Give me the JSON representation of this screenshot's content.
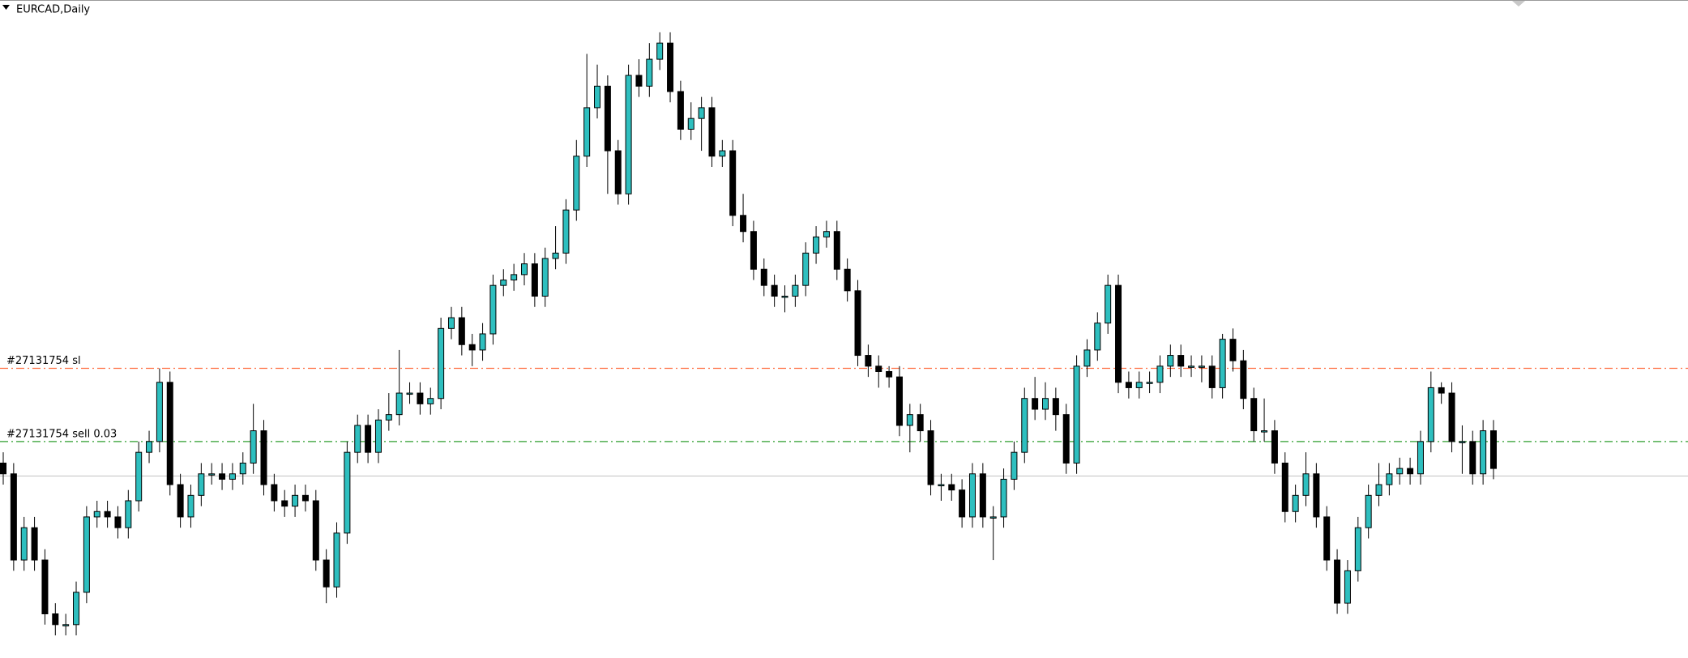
{
  "chart_data": {
    "type": "candlestick",
    "title": "EURCAD,Daily",
    "ylim": [
      -11,
      600
    ],
    "up_color": "#2ebfbf",
    "down_color": "#000000",
    "open": [
      170,
      160,
      80,
      110,
      80,
      30,
      20,
      20,
      50,
      120,
      125,
      120,
      110,
      135,
      180,
      190,
      245,
      150,
      120,
      140,
      160,
      160,
      155,
      160,
      170,
      200,
      150,
      135,
      130,
      140,
      135,
      80,
      55,
      105,
      180,
      205,
      180,
      210,
      215,
      235,
      235,
      225,
      230,
      295,
      305,
      280,
      275,
      290,
      335,
      340,
      345,
      355,
      325,
      360,
      365,
      405,
      455,
      500,
      520,
      460,
      420,
      530,
      520,
      545,
      560,
      515,
      480,
      490,
      500,
      455,
      460,
      400,
      385,
      350,
      335,
      325,
      325,
      335,
      365,
      380,
      385,
      350,
      330,
      270,
      260,
      255,
      250,
      205,
      215,
      200,
      150,
      150,
      145,
      120,
      160,
      120,
      120,
      155,
      180,
      230,
      220,
      230,
      215,
      170,
      260,
      275,
      300,
      335,
      245,
      240,
      245,
      245,
      260,
      270,
      260,
      260,
      260,
      240,
      285,
      265,
      230,
      200,
      200,
      170,
      125,
      140,
      160,
      120,
      80,
      40,
      70,
      110,
      140,
      150,
      160,
      165,
      160,
      190,
      240,
      235,
      190,
      190,
      160,
      200
    ],
    "high": [
      180,
      170,
      120,
      120,
      90,
      40,
      30,
      60,
      130,
      135,
      135,
      130,
      145,
      190,
      200,
      258,
      255,
      160,
      150,
      170,
      170,
      170,
      170,
      180,
      225,
      210,
      160,
      145,
      150,
      150,
      145,
      90,
      115,
      190,
      215,
      215,
      220,
      235,
      275,
      245,
      245,
      240,
      305,
      315,
      315,
      290,
      300,
      345,
      350,
      355,
      365,
      365,
      370,
      390,
      415,
      470,
      550,
      540,
      530,
      470,
      540,
      545,
      560,
      570,
      570,
      525,
      505,
      510,
      510,
      470,
      470,
      420,
      395,
      360,
      345,
      335,
      345,
      375,
      390,
      395,
      395,
      360,
      340,
      280,
      270,
      260,
      260,
      225,
      225,
      210,
      160,
      160,
      155,
      170,
      170,
      130,
      165,
      190,
      240,
      250,
      245,
      240,
      225,
      270,
      285,
      310,
      345,
      345,
      255,
      255,
      255,
      270,
      280,
      280,
      270,
      270,
      270,
      290,
      295,
      275,
      240,
      230,
      210,
      180,
      150,
      180,
      170,
      130,
      90,
      80,
      120,
      150,
      170,
      170,
      175,
      175,
      200,
      255,
      245,
      245,
      205,
      200,
      210,
      210
    ],
    "low": [
      150,
      70,
      70,
      70,
      20,
      10,
      10,
      10,
      40,
      110,
      110,
      100,
      100,
      125,
      170,
      180,
      140,
      110,
      110,
      130,
      150,
      145,
      145,
      150,
      160,
      140,
      125,
      120,
      120,
      125,
      70,
      40,
      45,
      95,
      170,
      170,
      170,
      200,
      205,
      225,
      215,
      215,
      220,
      285,
      270,
      260,
      265,
      280,
      325,
      330,
      335,
      315,
      315,
      350,
      355,
      395,
      445,
      490,
      420,
      410,
      410,
      510,
      510,
      535,
      505,
      470,
      470,
      460,
      445,
      445,
      390,
      375,
      340,
      325,
      315,
      310,
      315,
      325,
      355,
      370,
      340,
      320,
      260,
      250,
      240,
      240,
      195,
      180,
      190,
      140,
      135,
      135,
      110,
      110,
      110,
      80,
      110,
      145,
      170,
      210,
      210,
      200,
      160,
      160,
      250,
      265,
      290,
      235,
      230,
      230,
      235,
      235,
      250,
      250,
      250,
      245,
      230,
      230,
      255,
      220,
      190,
      190,
      160,
      115,
      115,
      130,
      110,
      70,
      30,
      30,
      60,
      100,
      130,
      140,
      150,
      150,
      150,
      180,
      225,
      180,
      160,
      150,
      150,
      155
    ],
    "close": [
      160,
      80,
      110,
      80,
      30,
      20,
      20,
      50,
      120,
      125,
      120,
      110,
      135,
      180,
      190,
      245,
      150,
      120,
      140,
      160,
      160,
      155,
      160,
      170,
      200,
      150,
      135,
      130,
      140,
      135,
      80,
      55,
      105,
      180,
      205,
      180,
      210,
      215,
      235,
      235,
      225,
      230,
      295,
      305,
      280,
      275,
      290,
      335,
      340,
      345,
      355,
      325,
      360,
      365,
      405,
      455,
      500,
      520,
      460,
      420,
      530,
      520,
      545,
      560,
      515,
      480,
      490,
      500,
      455,
      460,
      400,
      385,
      350,
      335,
      325,
      325,
      335,
      365,
      380,
      385,
      350,
      330,
      270,
      260,
      255,
      250,
      205,
      215,
      200,
      150,
      150,
      145,
      120,
      160,
      120,
      120,
      155,
      180,
      230,
      220,
      230,
      215,
      170,
      260,
      275,
      300,
      335,
      245,
      240,
      245,
      245,
      260,
      270,
      260,
      260,
      260,
      240,
      285,
      265,
      230,
      200,
      200,
      170,
      125,
      140,
      160,
      120,
      80,
      40,
      70,
      110,
      140,
      150,
      160,
      165,
      160,
      190,
      240,
      235,
      190,
      190,
      160,
      200,
      165
    ],
    "levels": [
      {
        "label": "#27131754 sl",
        "value": 258,
        "color": "#ff6a3d"
      },
      {
        "label": "#27131754 sell 0.03",
        "value": 190,
        "color": "#2e9e2e"
      }
    ],
    "price_line": {
      "value": 158,
      "color": "#c0c0c0"
    }
  }
}
